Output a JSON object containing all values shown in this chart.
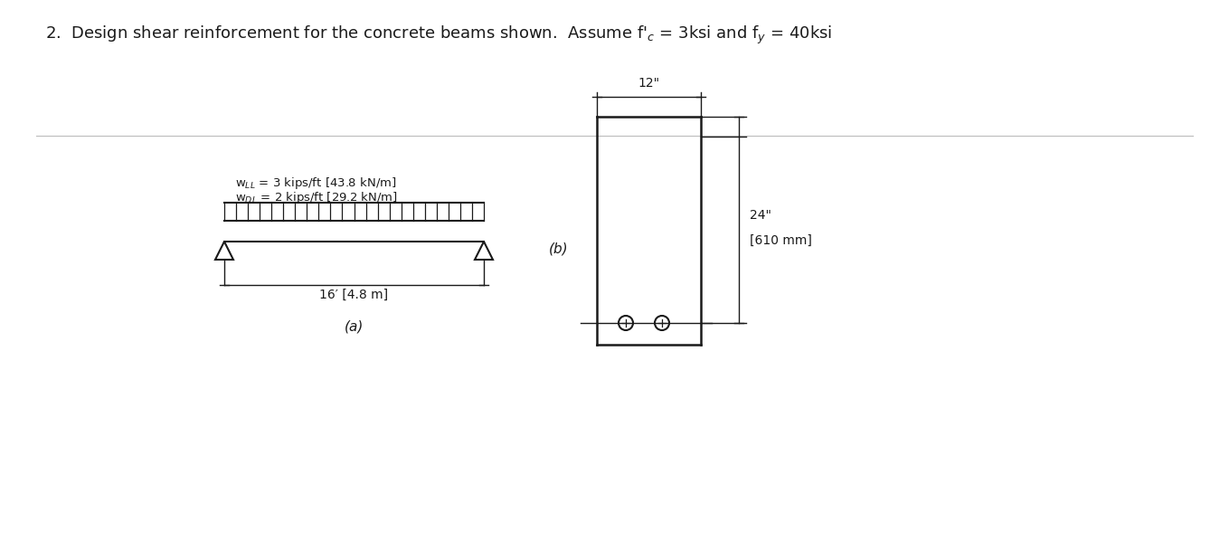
{
  "fig_width": 13.59,
  "fig_height": 6.19,
  "background_color": "#ffffff",
  "line_color": "#1a1a1a",
  "beam_lw": 1.5,
  "dim_lw": 1.0,
  "sec_lw": 1.8,
  "title_text": "2.  Design shear reinforcement for the concrete beams shown.  Assume f’c = 3ksi and fᵧ = 40ksi",
  "label_a": "(a)",
  "label_b": "(b)",
  "span_label": "16′ [4.8 m]",
  "width_label": "12\"",
  "height_label_1": "24\"",
  "height_label_2": "[610 mm]"
}
